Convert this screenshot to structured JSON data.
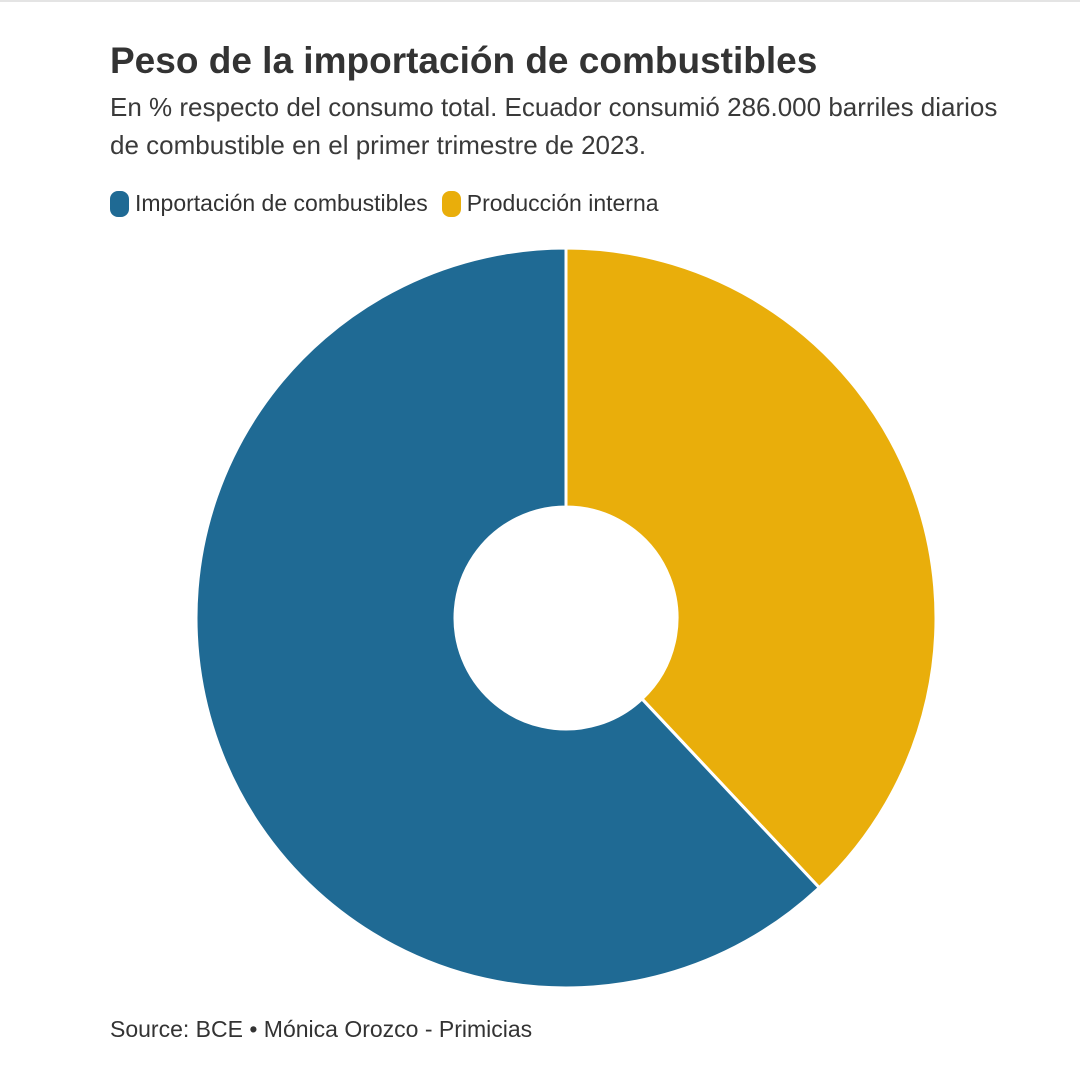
{
  "chart_data": {
    "type": "donut",
    "title": "Peso de la importación de combustibles",
    "subtitle": "En % respecto del consumo total. Ecuador consumió 286.000 barriles diarios de combustible en el primer trimestre de 2023.",
    "categories": [
      "Importación de combustibles",
      "Producción interna"
    ],
    "values": [
      62,
      38
    ],
    "colors": [
      "#1f6a94",
      "#e9ae0b"
    ],
    "source": "Source: BCE • Mónica Orozco - Primicias"
  }
}
